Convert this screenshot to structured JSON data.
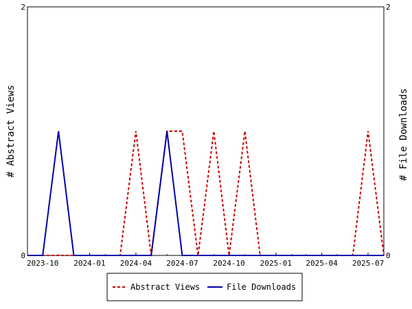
{
  "chart_data": {
    "type": "line",
    "x_type": "date",
    "x": [
      "2023-09-01",
      "2023-10-01",
      "2023-11-01",
      "2023-12-01",
      "2024-01-01",
      "2024-02-01",
      "2024-03-01",
      "2024-04-01",
      "2024-05-01",
      "2024-06-01",
      "2024-07-01",
      "2024-08-01",
      "2024-09-01",
      "2024-10-01",
      "2024-11-01",
      "2024-12-01",
      "2025-01-01",
      "2025-02-01",
      "2025-03-01",
      "2025-04-01",
      "2025-05-01",
      "2025-06-01",
      "2025-07-01",
      "2025-08-01"
    ],
    "x_ticks": [
      "2023-10",
      "2024-01",
      "2024-04",
      "2024-07",
      "2024-10",
      "2025-01",
      "2025-04",
      "2025-07"
    ],
    "series": [
      {
        "name": "Abstract Views",
        "axis": "left",
        "color": "#cc0000",
        "dash": "dashed",
        "values": [
          0,
          0,
          0,
          0,
          0,
          0,
          0,
          1,
          0,
          1,
          1,
          0,
          1,
          0,
          1,
          0,
          0,
          0,
          0,
          0,
          0,
          0,
          1,
          0
        ]
      },
      {
        "name": "File Downloads",
        "axis": "right",
        "color": "#0000aa",
        "dash": "solid",
        "values": [
          0,
          0,
          1,
          0,
          0,
          0,
          0,
          0,
          0,
          1,
          0,
          0,
          0,
          0,
          0,
          0,
          0,
          0,
          0,
          0,
          0,
          0,
          0,
          0
        ]
      }
    ],
    "ylabel": "# Abstract Views",
    "y2label": "# File Downloads",
    "ylim": [
      0,
      2
    ],
    "y2lim": [
      0,
      2
    ],
    "y_ticks": [
      "0",
      "2"
    ],
    "y2_ticks": [
      "0",
      "2"
    ],
    "grid": false,
    "legend_position": "bottom"
  }
}
